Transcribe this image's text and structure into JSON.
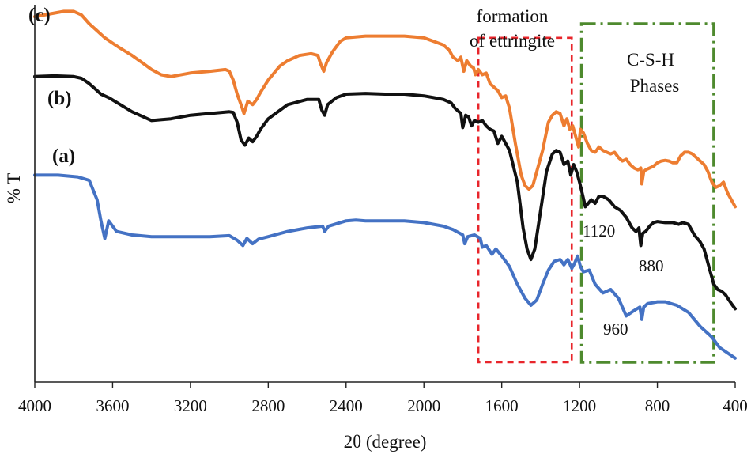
{
  "chart_data": {
    "type": "line",
    "title": "",
    "xlabel": "2θ (degree)",
    "ylabel": "% T",
    "xlim": [
      4000,
      400
    ],
    "x_reversed": true,
    "x_ticks": [
      4000,
      3600,
      3200,
      2800,
      2400,
      2000,
      1600,
      1200,
      800,
      400
    ],
    "x_tick_labels": [
      "4000",
      "3600",
      "3200",
      "2800",
      "2400",
      "2000",
      "1600",
      "1200",
      "800",
      "400"
    ],
    "ylim": [
      0,
      100
    ],
    "y_ticks_shown": false,
    "series": [
      {
        "name": "(a)",
        "color": "#4472C4",
        "points": [
          [
            4000,
            57
          ],
          [
            3880,
            57
          ],
          [
            3780,
            56.5
          ],
          [
            3720,
            55.5
          ],
          [
            3680,
            50
          ],
          [
            3660,
            44
          ],
          [
            3640,
            39
          ],
          [
            3620,
            44
          ],
          [
            3580,
            41
          ],
          [
            3500,
            40
          ],
          [
            3400,
            39.5
          ],
          [
            3300,
            39.5
          ],
          [
            3200,
            39.5
          ],
          [
            3100,
            39.5
          ],
          [
            3000,
            39.8
          ],
          [
            2960,
            38.5
          ],
          [
            2930,
            37
          ],
          [
            2910,
            39
          ],
          [
            2880,
            37.5
          ],
          [
            2850,
            38.8
          ],
          [
            2800,
            39.5
          ],
          [
            2700,
            41
          ],
          [
            2600,
            42
          ],
          [
            2520,
            42.5
          ],
          [
            2510,
            41
          ],
          [
            2490,
            42.5
          ],
          [
            2400,
            44
          ],
          [
            2350,
            44.2
          ],
          [
            2300,
            44
          ],
          [
            2200,
            44
          ],
          [
            2100,
            44
          ],
          [
            2000,
            43.5
          ],
          [
            1950,
            43
          ],
          [
            1900,
            42.5
          ],
          [
            1850,
            41.5
          ],
          [
            1800,
            40
          ],
          [
            1790,
            37.5
          ],
          [
            1775,
            39.5
          ],
          [
            1740,
            40
          ],
          [
            1710,
            39
          ],
          [
            1700,
            36.5
          ],
          [
            1680,
            37
          ],
          [
            1650,
            34.5
          ],
          [
            1630,
            36
          ],
          [
            1600,
            34
          ],
          [
            1560,
            31
          ],
          [
            1520,
            26
          ],
          [
            1480,
            22
          ],
          [
            1450,
            20
          ],
          [
            1420,
            21.5
          ],
          [
            1390,
            26
          ],
          [
            1360,
            30
          ],
          [
            1330,
            32.5
          ],
          [
            1300,
            33
          ],
          [
            1280,
            31.5
          ],
          [
            1260,
            33
          ],
          [
            1240,
            30.5
          ],
          [
            1225,
            32
          ],
          [
            1210,
            34
          ],
          [
            1195,
            31
          ],
          [
            1180,
            29.5
          ],
          [
            1150,
            30
          ],
          [
            1120,
            26
          ],
          [
            1080,
            23.5
          ],
          [
            1040,
            24.5
          ],
          [
            1000,
            22
          ],
          [
            960,
            17
          ],
          [
            920,
            18.5
          ],
          [
            890,
            19.5
          ],
          [
            880,
            16
          ],
          [
            870,
            19.5
          ],
          [
            850,
            20.5
          ],
          [
            800,
            21
          ],
          [
            760,
            21
          ],
          [
            700,
            20
          ],
          [
            640,
            18
          ],
          [
            580,
            14
          ],
          [
            520,
            11
          ],
          [
            480,
            8
          ],
          [
            440,
            6.5
          ],
          [
            400,
            5
          ]
        ]
      },
      {
        "name": "(b)",
        "color": "#111111",
        "points": [
          [
            4000,
            85
          ],
          [
            3900,
            85.2
          ],
          [
            3800,
            85
          ],
          [
            3760,
            84.5
          ],
          [
            3720,
            83
          ],
          [
            3690,
            81.5
          ],
          [
            3660,
            80
          ],
          [
            3620,
            79
          ],
          [
            3560,
            77
          ],
          [
            3500,
            75
          ],
          [
            3440,
            73.5
          ],
          [
            3400,
            72.5
          ],
          [
            3300,
            73
          ],
          [
            3200,
            74
          ],
          [
            3100,
            74.5
          ],
          [
            3000,
            75
          ],
          [
            2980,
            74.8
          ],
          [
            2960,
            72
          ],
          [
            2940,
            67
          ],
          [
            2920,
            65.5
          ],
          [
            2900,
            67.5
          ],
          [
            2880,
            66.5
          ],
          [
            2860,
            68
          ],
          [
            2840,
            70
          ],
          [
            2800,
            73
          ],
          [
            2700,
            77
          ],
          [
            2600,
            78.5
          ],
          [
            2540,
            78.5
          ],
          [
            2525,
            75.5
          ],
          [
            2510,
            74
          ],
          [
            2495,
            77
          ],
          [
            2450,
            79
          ],
          [
            2400,
            80
          ],
          [
            2300,
            80.2
          ],
          [
            2200,
            80
          ],
          [
            2100,
            80
          ],
          [
            2000,
            79.5
          ],
          [
            1950,
            79
          ],
          [
            1900,
            78.5
          ],
          [
            1860,
            77.5
          ],
          [
            1840,
            76
          ],
          [
            1810,
            74.5
          ],
          [
            1800,
            70.5
          ],
          [
            1785,
            74
          ],
          [
            1770,
            73.5
          ],
          [
            1755,
            71
          ],
          [
            1740,
            72.5
          ],
          [
            1720,
            72
          ],
          [
            1700,
            72.5
          ],
          [
            1680,
            71
          ],
          [
            1660,
            70
          ],
          [
            1640,
            69.5
          ],
          [
            1620,
            66
          ],
          [
            1600,
            68
          ],
          [
            1560,
            64
          ],
          [
            1520,
            55
          ],
          [
            1490,
            42
          ],
          [
            1470,
            36
          ],
          [
            1450,
            33
          ],
          [
            1430,
            36
          ],
          [
            1400,
            47
          ],
          [
            1370,
            58
          ],
          [
            1340,
            63
          ],
          [
            1320,
            64
          ],
          [
            1300,
            63.5
          ],
          [
            1280,
            60
          ],
          [
            1260,
            61
          ],
          [
            1245,
            57
          ],
          [
            1230,
            60
          ],
          [
            1215,
            58
          ],
          [
            1200,
            55
          ],
          [
            1170,
            48
          ],
          [
            1140,
            50
          ],
          [
            1120,
            49
          ],
          [
            1100,
            51
          ],
          [
            1080,
            51
          ],
          [
            1050,
            50
          ],
          [
            1020,
            48
          ],
          [
            990,
            47
          ],
          [
            960,
            45
          ],
          [
            930,
            42
          ],
          [
            910,
            41
          ],
          [
            895,
            42
          ],
          [
            885,
            37
          ],
          [
            875,
            40.5
          ],
          [
            860,
            41
          ],
          [
            840,
            42.5
          ],
          [
            820,
            43.5
          ],
          [
            800,
            43.8
          ],
          [
            760,
            43.5
          ],
          [
            720,
            43.5
          ],
          [
            690,
            43
          ],
          [
            670,
            43.5
          ],
          [
            640,
            43
          ],
          [
            610,
            40
          ],
          [
            580,
            38
          ],
          [
            560,
            36
          ],
          [
            540,
            32
          ],
          [
            510,
            26
          ],
          [
            490,
            24.5
          ],
          [
            470,
            24
          ],
          [
            450,
            23
          ],
          [
            420,
            20.5
          ],
          [
            400,
            19
          ]
        ]
      },
      {
        "name": "(c)",
        "color": "#ED7D31",
        "points": [
          [
            4000,
            102
          ],
          [
            3900,
            103
          ],
          [
            3850,
            103.5
          ],
          [
            3800,
            103.5
          ],
          [
            3760,
            102.5
          ],
          [
            3720,
            100
          ],
          [
            3680,
            98
          ],
          [
            3640,
            96
          ],
          [
            3600,
            94.5
          ],
          [
            3560,
            93
          ],
          [
            3500,
            91
          ],
          [
            3450,
            89
          ],
          [
            3400,
            87
          ],
          [
            3350,
            85.5
          ],
          [
            3300,
            85
          ],
          [
            3200,
            86
          ],
          [
            3100,
            86.5
          ],
          [
            3020,
            87
          ],
          [
            3000,
            86.5
          ],
          [
            2980,
            84
          ],
          [
            2960,
            80
          ],
          [
            2940,
            77
          ],
          [
            2925,
            74.5
          ],
          [
            2905,
            78
          ],
          [
            2880,
            77
          ],
          [
            2860,
            78.5
          ],
          [
            2840,
            80.5
          ],
          [
            2800,
            84
          ],
          [
            2740,
            88
          ],
          [
            2700,
            89.5
          ],
          [
            2640,
            91
          ],
          [
            2580,
            91.5
          ],
          [
            2545,
            91
          ],
          [
            2530,
            88.5
          ],
          [
            2515,
            86.5
          ],
          [
            2500,
            89
          ],
          [
            2470,
            92
          ],
          [
            2430,
            95
          ],
          [
            2400,
            96
          ],
          [
            2300,
            96.5
          ],
          [
            2200,
            96.5
          ],
          [
            2100,
            96.5
          ],
          [
            2000,
            96
          ],
          [
            1950,
            95
          ],
          [
            1900,
            94
          ],
          [
            1870,
            92.5
          ],
          [
            1850,
            90.5
          ],
          [
            1825,
            89.5
          ],
          [
            1810,
            90.5
          ],
          [
            1795,
            86.5
          ],
          [
            1780,
            89.5
          ],
          [
            1760,
            88
          ],
          [
            1745,
            87.5
          ],
          [
            1735,
            85.5
          ],
          [
            1720,
            87
          ],
          [
            1700,
            85.5
          ],
          [
            1680,
            86
          ],
          [
            1660,
            83
          ],
          [
            1640,
            82
          ],
          [
            1620,
            81
          ],
          [
            1600,
            79
          ],
          [
            1580,
            79.5
          ],
          [
            1560,
            76
          ],
          [
            1530,
            66
          ],
          [
            1500,
            57
          ],
          [
            1480,
            54
          ],
          [
            1460,
            53
          ],
          [
            1440,
            54
          ],
          [
            1420,
            58
          ],
          [
            1390,
            64
          ],
          [
            1360,
            72
          ],
          [
            1340,
            74
          ],
          [
            1320,
            75
          ],
          [
            1300,
            74.5
          ],
          [
            1280,
            71
          ],
          [
            1265,
            73
          ],
          [
            1250,
            70
          ],
          [
            1235,
            71
          ],
          [
            1220,
            68
          ],
          [
            1205,
            65
          ],
          [
            1195,
            70
          ],
          [
            1180,
            69
          ],
          [
            1160,
            66
          ],
          [
            1140,
            64
          ],
          [
            1120,
            63.5
          ],
          [
            1100,
            65
          ],
          [
            1080,
            64
          ],
          [
            1060,
            63.5
          ],
          [
            1040,
            63
          ],
          [
            1020,
            63.5
          ],
          [
            1000,
            62
          ],
          [
            980,
            61
          ],
          [
            960,
            61.5
          ],
          [
            940,
            60
          ],
          [
            920,
            59
          ],
          [
            900,
            58.5
          ],
          [
            885,
            59
          ],
          [
            880,
            54.5
          ],
          [
            870,
            58
          ],
          [
            860,
            58.5
          ],
          [
            840,
            59
          ],
          [
            820,
            59.5
          ],
          [
            800,
            60.5
          ],
          [
            780,
            61
          ],
          [
            760,
            61.2
          ],
          [
            740,
            61
          ],
          [
            720,
            60.5
          ],
          [
            700,
            60.5
          ],
          [
            680,
            62.5
          ],
          [
            660,
            63.5
          ],
          [
            640,
            63.5
          ],
          [
            620,
            63
          ],
          [
            600,
            62
          ],
          [
            580,
            61
          ],
          [
            560,
            60
          ],
          [
            540,
            58
          ],
          [
            520,
            55
          ],
          [
            500,
            53.5
          ],
          [
            480,
            54
          ],
          [
            460,
            55
          ],
          [
            440,
            52
          ],
          [
            420,
            50
          ],
          [
            405,
            48.5
          ],
          [
            400,
            48
          ]
        ]
      }
    ],
    "series_labels": [
      "(a)",
      "(b)",
      "(c)"
    ],
    "annotations": [
      {
        "text": "1120",
        "x": 1120,
        "y": 38
      },
      {
        "text": "880",
        "x": 880,
        "y": 28
      },
      {
        "text": "960",
        "x": 960,
        "y": 8
      }
    ],
    "regions": [
      {
        "name": "formation of ettringite",
        "lines": [
          "formation",
          "of ettringite"
        ],
        "x_range": [
          1720,
          1240
        ],
        "y_range": [
          0,
          96
        ],
        "style": "dashed",
        "color": "#E8252B"
      },
      {
        "name": "C-S-H Phases",
        "lines": [
          "C-S-H",
          "Phases"
        ],
        "x_range": [
          1190,
          510
        ],
        "y_range": [
          0,
          100
        ],
        "style": "dash-dot",
        "color": "#4E8A2E"
      }
    ]
  }
}
